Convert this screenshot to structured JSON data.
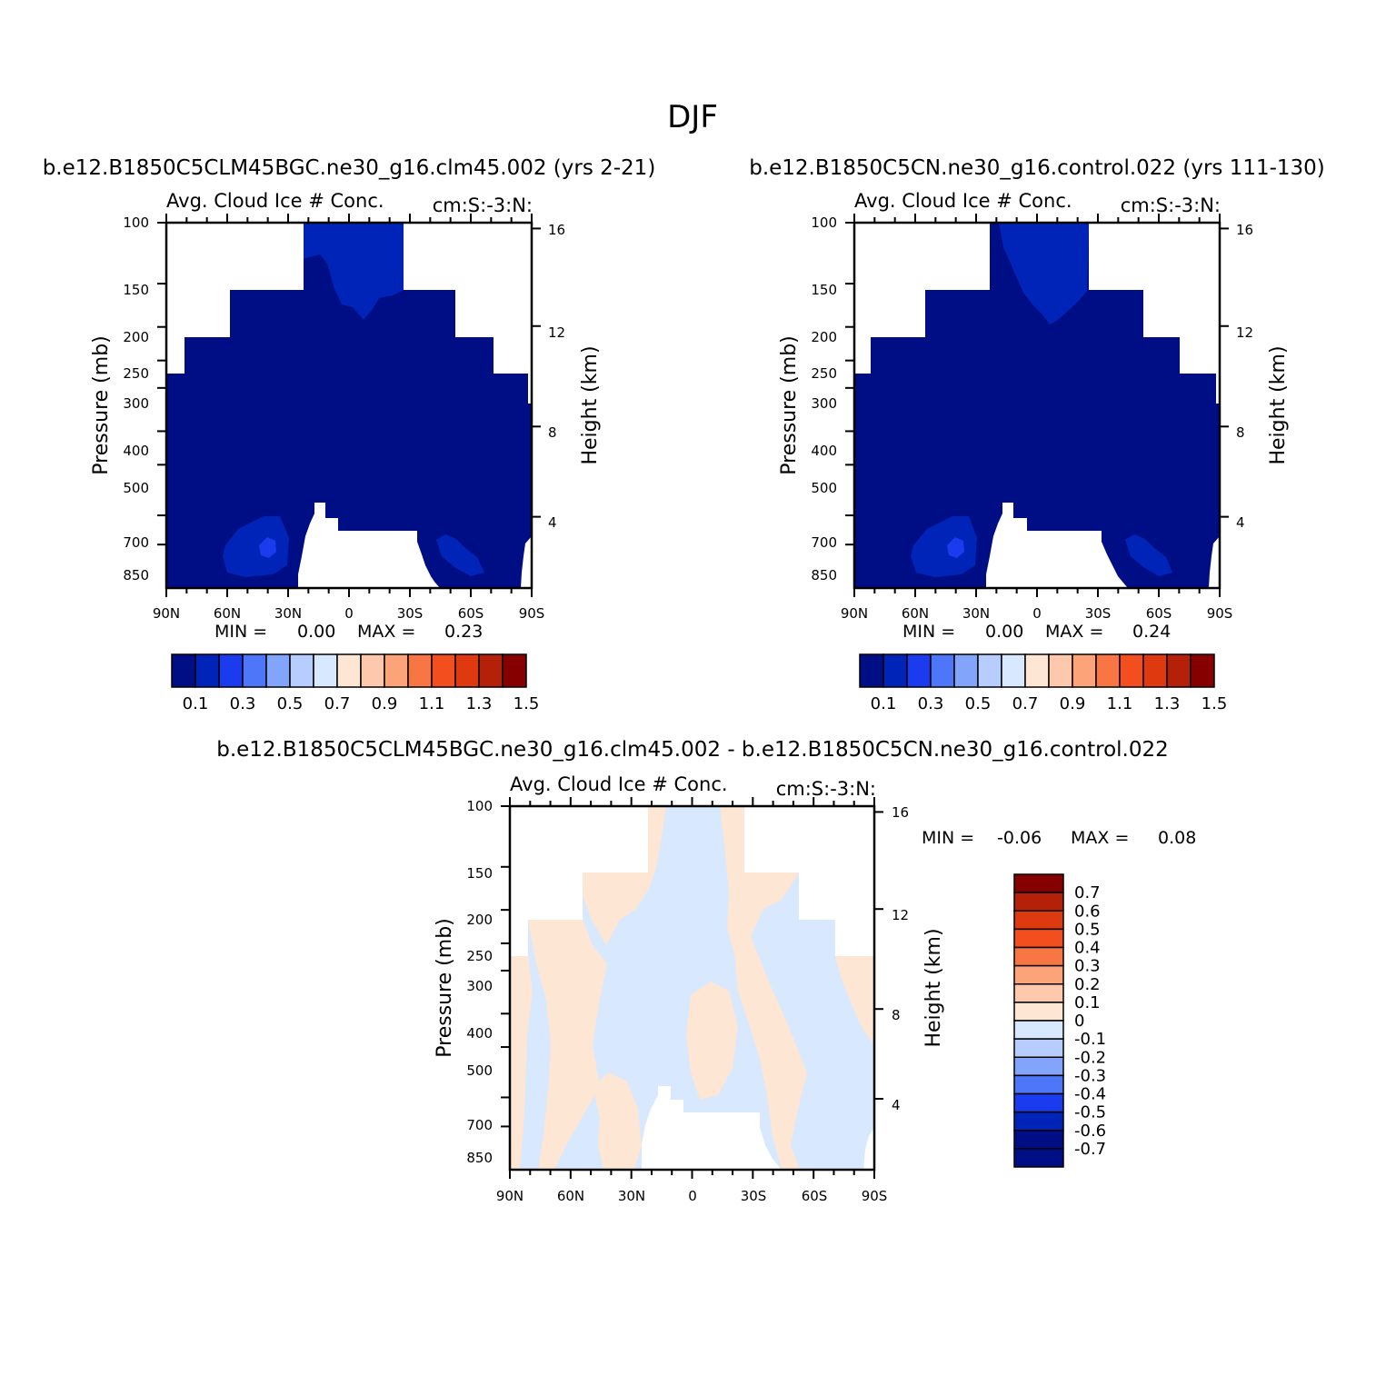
{
  "page": {
    "title": "DJF"
  },
  "colors": {
    "white": "#ffffff",
    "fill_0": "#000e86",
    "fill_1": "#0024b8",
    "fill_2": "#1a3bee",
    "fill_3": "#4e76f9",
    "fill_4": "#82a5fb",
    "fill_5": "#b6cdfe",
    "fill_6": "#d8e8fe",
    "fill_7": "#fee6d4",
    "fill_8": "#fec8ac",
    "fill_9": "#fca37a",
    "fill_10": "#f87644",
    "fill_11": "#f24e1e",
    "fill_12": "#df3a0f",
    "fill_13": "#b42008",
    "fill_14": "#860000"
  },
  "chart_data": [
    {
      "id": "panel-a",
      "type": "contour",
      "case_title": "b.e12.B1850C5CLM45BGC.ne30_g16.clm45.002 (yrs 2-21)",
      "variable": "Avg. Cloud Ice # Conc.",
      "units": "cm:S:-3:N:",
      "xlabel": "",
      "ylabel": "Pressure (mb)",
      "y2label": "Height (km)",
      "x_ticks": [
        "90N",
        "60N",
        "30N",
        "0",
        "30S",
        "60S",
        "90S"
      ],
      "y_ticks": [
        "100",
        "150",
        "200",
        "250",
        "300",
        "400",
        "500",
        "700",
        "850"
      ],
      "y2_ticks": [
        "16",
        "12",
        "8",
        "4"
      ],
      "min_label": "MIN =",
      "min": "0.00",
      "max_label": "MAX =",
      "max": "0.23",
      "colorbar": {
        "orientation": "horizontal",
        "levels": [
          "0.1",
          "0.3",
          "0.5",
          "0.7",
          "0.9",
          "1.1",
          "1.3",
          "1.5"
        ]
      }
    },
    {
      "id": "panel-b",
      "type": "contour",
      "case_title": "b.e12.B1850C5CN.ne30_g16.control.022 (yrs 111-130)",
      "variable": "Avg. Cloud Ice # Conc.",
      "units": "cm:S:-3:N:",
      "xlabel": "",
      "ylabel": "Pressure (mb)",
      "y2label": "Height (km)",
      "x_ticks": [
        "90N",
        "60N",
        "30N",
        "0",
        "30S",
        "60S",
        "90S"
      ],
      "y_ticks": [
        "100",
        "150",
        "200",
        "250",
        "300",
        "400",
        "500",
        "700",
        "850"
      ],
      "y2_ticks": [
        "16",
        "12",
        "8",
        "4"
      ],
      "min_label": "MIN =",
      "min": "0.00",
      "max_label": "MAX =",
      "max": "0.24",
      "colorbar": {
        "orientation": "horizontal",
        "levels": [
          "0.1",
          "0.3",
          "0.5",
          "0.7",
          "0.9",
          "1.1",
          "1.3",
          "1.5"
        ]
      }
    },
    {
      "id": "panel-diff",
      "type": "contour",
      "case_title": "b.e12.B1850C5CLM45BGC.ne30_g16.clm45.002 - b.e12.B1850C5CN.ne30_g16.control.022",
      "variable": "Avg. Cloud Ice # Conc.",
      "units": "cm:S:-3:N:",
      "xlabel": "",
      "ylabel": "Pressure (mb)",
      "y2label": "Height (km)",
      "x_ticks": [
        "90N",
        "60N",
        "30N",
        "0",
        "30S",
        "60S",
        "90S"
      ],
      "y_ticks": [
        "100",
        "150",
        "200",
        "250",
        "300",
        "400",
        "500",
        "700",
        "850"
      ],
      "y2_ticks": [
        "16",
        "12",
        "8",
        "4"
      ],
      "min_label": "MIN =",
      "min": "-0.06",
      "max_label": "MAX =",
      "max": "0.08",
      "colorbar": {
        "orientation": "vertical",
        "levels": [
          "0.7",
          "0.6",
          "0.5",
          "0.4",
          "0.3",
          "0.2",
          "0.1",
          "0",
          "-0.1",
          "-0.2",
          "-0.3",
          "-0.4",
          "-0.5",
          "-0.6",
          "-0.7"
        ]
      }
    }
  ]
}
